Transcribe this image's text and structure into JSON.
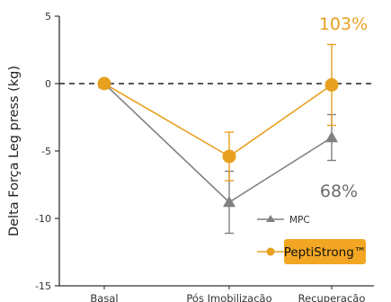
{
  "chart_data": {
    "type": "line",
    "title": "",
    "xlabel": "",
    "ylabel": "Delta Força Leg press (kg)",
    "ylim": [
      -15,
      5
    ],
    "yticks": [
      5,
      0,
      -5,
      -10,
      -15
    ],
    "categories": [
      "Basal",
      "Pós Imobilização",
      "Recuperação"
    ],
    "reference_line": {
      "y": 0,
      "style": "dashed"
    },
    "series": [
      {
        "name": "MPC",
        "color": "#808080",
        "marker": "triangle",
        "values": [
          0,
          -8.8,
          -4.0
        ],
        "error": [
          0,
          2.3,
          1.7
        ]
      },
      {
        "name": "PeptiStrong™",
        "color": "#E8A020",
        "marker": "circle",
        "values": [
          0,
          -5.4,
          -0.1
        ],
        "error": [
          0,
          1.8,
          3.0
        ]
      }
    ],
    "annotations": [
      {
        "text": "103%",
        "series": "PeptiStrong™",
        "color": "#E8A020"
      },
      {
        "text": "68%",
        "series": "MPC",
        "color": "#6d6d6d"
      }
    ],
    "legend": {
      "placement": "bottom-right",
      "highlight_color": "#F2A623",
      "entries": [
        "MPC",
        "PeptiStrong™"
      ]
    }
  }
}
